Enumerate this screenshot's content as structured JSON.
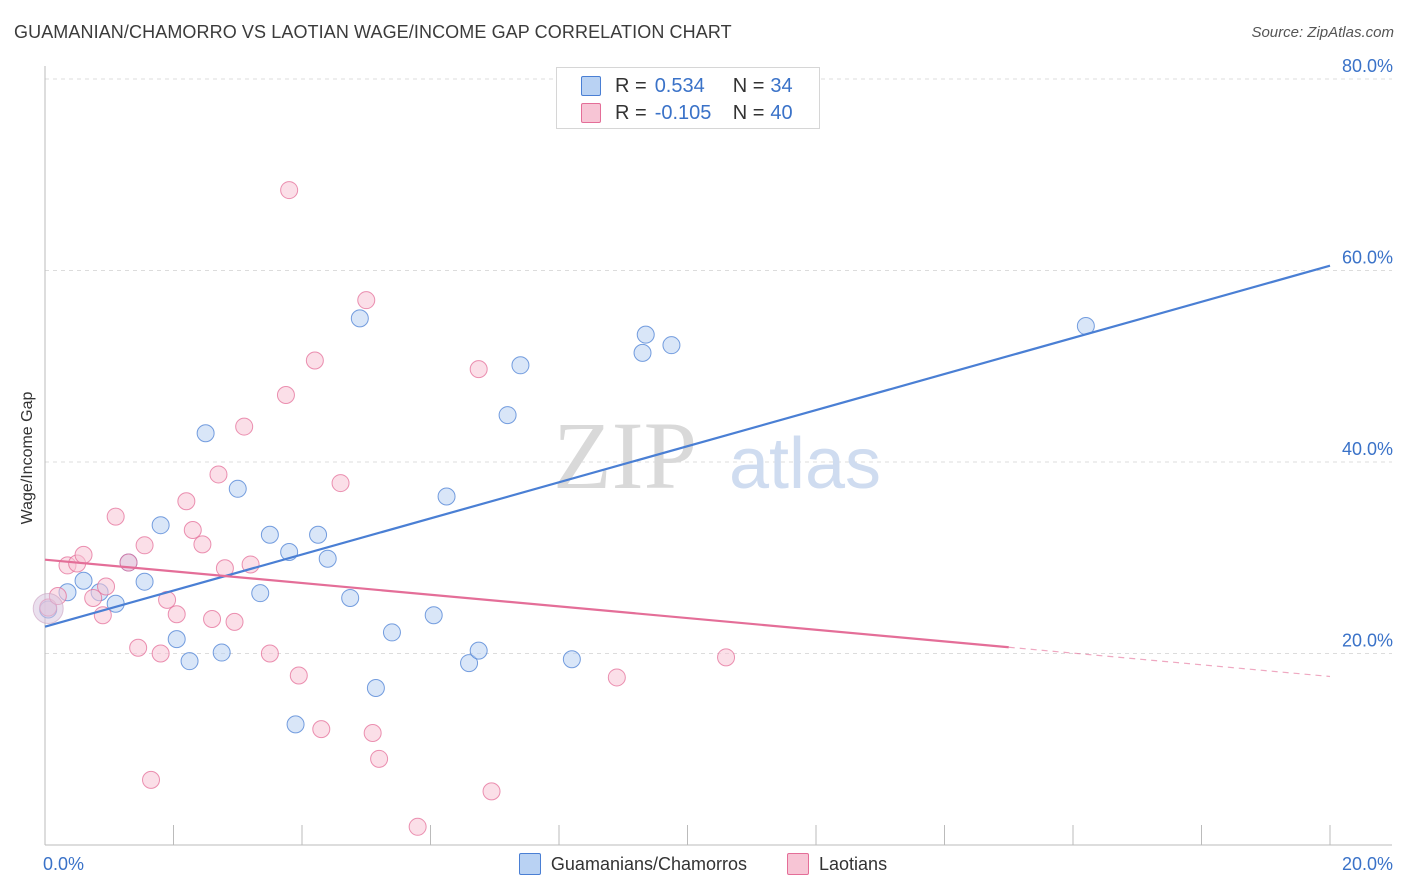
{
  "chart_data": {
    "type": "scatter",
    "title": "GUAMANIAN/CHAMORRO VS LAOTIAN WAGE/INCOME GAP CORRELATION CHART",
    "source": "Source: ZipAtlas.com",
    "ylabel": "Wage/Income Gap",
    "xlabel": "",
    "xlim": [
      0,
      20
    ],
    "ylim": [
      0,
      80
    ],
    "x_ticks": [
      0,
      20
    ],
    "x_tick_labels": [
      "0.0%",
      "20.0%"
    ],
    "y_ticks": [
      20,
      40,
      60,
      80
    ],
    "y_tick_labels": [
      "20.0%",
      "40.0%",
      "60.0%",
      "80.0%"
    ],
    "grid": true,
    "watermark": {
      "zip": "ZIP",
      "atlas": "atlas"
    },
    "legend": {
      "r_label": "R =",
      "n_label": "N =",
      "items": [
        {
          "name": "Guamanians/Chamorros",
          "r": "0.534",
          "n": "34",
          "color": "#4a7fd4"
        },
        {
          "name": "Laotians",
          "r": "-0.105",
          "n": "40",
          "color": "#e46e98"
        }
      ]
    },
    "series": [
      {
        "name": "Guamanians/Chamorros",
        "color": "#4a7fd4",
        "fill": "#b9d2f3",
        "trend": {
          "x0": 0,
          "y0": 22.8,
          "x1": 20.0,
          "y1": 60.5,
          "solid_until": 20.0
        },
        "points": [
          [
            0.05,
            24.6
          ],
          [
            0.35,
            26.4
          ],
          [
            0.6,
            27.6
          ],
          [
            0.85,
            26.4
          ],
          [
            1.1,
            25.2
          ],
          [
            1.3,
            29.5
          ],
          [
            1.55,
            27.5
          ],
          [
            1.8,
            33.4
          ],
          [
            2.05,
            21.5
          ],
          [
            2.25,
            19.2
          ],
          [
            2.5,
            43.0
          ],
          [
            2.75,
            20.1
          ],
          [
            3.0,
            37.2
          ],
          [
            3.35,
            26.3
          ],
          [
            3.5,
            32.4
          ],
          [
            3.8,
            30.6
          ],
          [
            3.9,
            12.6
          ],
          [
            4.25,
            32.4
          ],
          [
            4.4,
            29.9
          ],
          [
            4.75,
            25.8
          ],
          [
            4.9,
            55.0
          ],
          [
            5.15,
            16.4
          ],
          [
            5.4,
            22.2
          ],
          [
            6.05,
            24.0
          ],
          [
            6.25,
            36.4
          ],
          [
            6.6,
            19.0
          ],
          [
            6.75,
            20.3
          ],
          [
            7.2,
            44.9
          ],
          [
            7.4,
            50.1
          ],
          [
            8.2,
            19.4
          ],
          [
            9.3,
            51.4
          ],
          [
            9.35,
            53.3
          ],
          [
            9.75,
            52.2
          ],
          [
            16.2,
            54.2
          ]
        ]
      },
      {
        "name": "Laotians",
        "color": "#e46e98",
        "fill": "#f7c5d5",
        "trend": {
          "x0": 0,
          "y0": 29.8,
          "x1": 20.0,
          "y1": 17.6,
          "solid_until": 15.0
        },
        "points": [
          [
            0.05,
            24.8
          ],
          [
            0.2,
            26.0
          ],
          [
            0.35,
            29.2
          ],
          [
            0.5,
            29.4
          ],
          [
            0.6,
            30.3
          ],
          [
            0.75,
            25.8
          ],
          [
            0.9,
            24.0
          ],
          [
            0.95,
            27.0
          ],
          [
            1.1,
            34.3
          ],
          [
            1.3,
            29.5
          ],
          [
            1.45,
            20.6
          ],
          [
            1.55,
            31.3
          ],
          [
            1.65,
            6.8
          ],
          [
            1.8,
            20.0
          ],
          [
            1.9,
            25.6
          ],
          [
            2.05,
            24.1
          ],
          [
            2.2,
            35.9
          ],
          [
            2.3,
            32.9
          ],
          [
            2.45,
            31.4
          ],
          [
            2.6,
            23.6
          ],
          [
            2.7,
            38.7
          ],
          [
            2.8,
            28.9
          ],
          [
            2.95,
            23.3
          ],
          [
            3.1,
            43.7
          ],
          [
            3.2,
            29.3
          ],
          [
            3.5,
            20.0
          ],
          [
            3.75,
            47.0
          ],
          [
            3.8,
            68.4
          ],
          [
            3.95,
            17.7
          ],
          [
            4.2,
            50.6
          ],
          [
            4.3,
            12.1
          ],
          [
            4.6,
            37.8
          ],
          [
            5.0,
            56.9
          ],
          [
            5.1,
            11.7
          ],
          [
            5.2,
            9.0
          ],
          [
            5.8,
            1.9
          ],
          [
            6.75,
            49.7
          ],
          [
            6.95,
            5.6
          ],
          [
            8.9,
            17.5
          ],
          [
            10.6,
            19.6
          ]
        ]
      }
    ]
  }
}
